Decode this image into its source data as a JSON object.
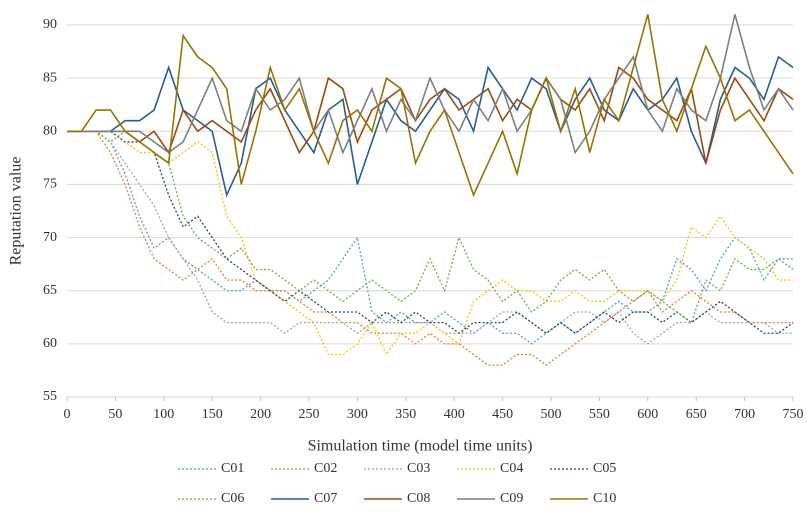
{
  "chart_data": {
    "type": "line",
    "xlabel": "Simulation time (model time units)",
    "ylabel": "Reputation value",
    "x": [
      0,
      15,
      30,
      45,
      60,
      75,
      90,
      105,
      120,
      135,
      150,
      165,
      180,
      195,
      210,
      225,
      240,
      255,
      270,
      285,
      300,
      315,
      330,
      345,
      360,
      375,
      390,
      405,
      420,
      435,
      450,
      465,
      480,
      495,
      510,
      525,
      540,
      555,
      570,
      585,
      600,
      615,
      630,
      645,
      660,
      675,
      690,
      705,
      720,
      735,
      750
    ],
    "xlim": [
      0,
      750
    ],
    "xticks": [
      0,
      50,
      100,
      150,
      200,
      250,
      300,
      350,
      400,
      450,
      500,
      550,
      600,
      650,
      700,
      750
    ],
    "ylim": [
      55,
      90
    ],
    "yticks": [
      55,
      60,
      65,
      70,
      75,
      80,
      85,
      90
    ],
    "grid": true,
    "series": [
      {
        "name": "C01",
        "color": "#5b9bd5",
        "style": "dotted",
        "values": [
          80,
          80,
          80,
          79,
          76,
          72,
          69,
          70,
          68,
          67,
          66,
          65,
          65,
          66,
          65,
          65,
          64,
          65,
          66,
          68,
          70,
          63,
          62,
          63,
          62,
          62,
          63,
          62,
          61,
          62,
          61,
          61,
          60,
          61,
          62,
          61,
          62,
          63,
          64,
          63,
          63,
          64,
          68,
          67,
          65,
          68,
          70,
          69,
          66,
          68,
          68
        ]
      },
      {
        "name": "C02",
        "color": "#ed7d31",
        "style": "dotted",
        "values": [
          80,
          80,
          80,
          78,
          75,
          71,
          68,
          67,
          66,
          67,
          68,
          66,
          66,
          65,
          65,
          65,
          64,
          63,
          63,
          62,
          62,
          61,
          61,
          61,
          60,
          61,
          60,
          60,
          59,
          58,
          58,
          59,
          59,
          58,
          59,
          60,
          61,
          62,
          63,
          64,
          65,
          63,
          64,
          65,
          64,
          63,
          63,
          62,
          62,
          62,
          62
        ]
      },
      {
        "name": "C03",
        "color": "#a5a5a5",
        "style": "dotted",
        "values": [
          80,
          80,
          80,
          79,
          77,
          75,
          73,
          70,
          68,
          66,
          63,
          62,
          62,
          62,
          62,
          61,
          62,
          62,
          62,
          62,
          61,
          62,
          62,
          62,
          62,
          62,
          61,
          61,
          61,
          62,
          63,
          63,
          62,
          61,
          62,
          63,
          63,
          62,
          63,
          61,
          60,
          61,
          62,
          62,
          63,
          62,
          62,
          62,
          62,
          61,
          61
        ]
      },
      {
        "name": "C04",
        "color": "#ffc000",
        "style": "dotted",
        "values": [
          80,
          80,
          80,
          80,
          79,
          78,
          78,
          77,
          78,
          79,
          78,
          72,
          70,
          66,
          65,
          64,
          63,
          62,
          59,
          59,
          60,
          62,
          59,
          61,
          61,
          62,
          61,
          60,
          64,
          65,
          66,
          65,
          65,
          64,
          64,
          65,
          64,
          64,
          65,
          65,
          65,
          64,
          66,
          71,
          70,
          72,
          70,
          69,
          68,
          66,
          66
        ]
      },
      {
        "name": "C05",
        "color": "#264478",
        "style": "dotted",
        "values": [
          80,
          80,
          80,
          80,
          79,
          79,
          78,
          74,
          71,
          72,
          70,
          68,
          67,
          66,
          65,
          64,
          65,
          64,
          63,
          63,
          63,
          62,
          63,
          62,
          63,
          62,
          62,
          61,
          62,
          62,
          62,
          63,
          62,
          61,
          62,
          61,
          62,
          63,
          62,
          63,
          63,
          62,
          63,
          62,
          63,
          64,
          63,
          62,
          61,
          61,
          62
        ]
      },
      {
        "name": "C06",
        "color": "#70ad47",
        "style": "dotted",
        "values": [
          80,
          80,
          80,
          79,
          80,
          79,
          78,
          77,
          72,
          70,
          69,
          68,
          69,
          67,
          67,
          66,
          65,
          66,
          65,
          64,
          65,
          66,
          65,
          64,
          65,
          68,
          65,
          70,
          67,
          66,
          64,
          65,
          63,
          64,
          66,
          67,
          66,
          67,
          65,
          64,
          65,
          64,
          63,
          62,
          66,
          65,
          68,
          67,
          67,
          68,
          67
        ]
      },
      {
        "name": "C07",
        "color": "#255e91",
        "style": "solid",
        "values": [
          80,
          80,
          80,
          80,
          81,
          81,
          82,
          86,
          82,
          81,
          80,
          74,
          77,
          84,
          85,
          82,
          80,
          78,
          82,
          83,
          75,
          79,
          83,
          81,
          80,
          82,
          84,
          83,
          80,
          86,
          84,
          82,
          85,
          84,
          80,
          83,
          85,
          82,
          81,
          84,
          82,
          83,
          85,
          80,
          77,
          83,
          86,
          85,
          83,
          87,
          86
        ]
      },
      {
        "name": "C08",
        "color": "#9e480e",
        "style": "solid",
        "values": [
          80,
          80,
          80,
          80,
          80,
          79,
          80,
          78,
          82,
          80,
          81,
          80,
          79,
          82,
          84,
          81,
          78,
          80,
          85,
          84,
          79,
          82,
          83,
          84,
          81,
          83,
          84,
          82,
          83,
          84,
          81,
          83,
          82,
          85,
          83,
          82,
          84,
          81,
          86,
          85,
          83,
          82,
          81,
          84,
          77,
          82,
          85,
          83,
          81,
          84,
          83
        ]
      },
      {
        "name": "C09",
        "color": "#7f7f7f",
        "style": "solid",
        "values": [
          80,
          80,
          80,
          80,
          80,
          80,
          79,
          78,
          79,
          82,
          85,
          81,
          80,
          84,
          82,
          83,
          85,
          80,
          82,
          78,
          81,
          84,
          80,
          83,
          81,
          85,
          82,
          80,
          83,
          81,
          84,
          80,
          82,
          85,
          83,
          78,
          80,
          83,
          85,
          87,
          82,
          80,
          84,
          82,
          81,
          85,
          91,
          86,
          82,
          84,
          82
        ]
      },
      {
        "name": "C10",
        "color": "#997300",
        "style": "solid",
        "values": [
          80,
          80,
          82,
          82,
          80,
          79,
          78,
          77,
          89,
          87,
          86,
          84,
          75,
          80,
          86,
          82,
          84,
          80,
          77,
          81,
          82,
          80,
          85,
          84,
          77,
          80,
          82,
          78,
          74,
          77,
          80,
          76,
          82,
          85,
          80,
          84,
          78,
          83,
          81,
          86,
          91,
          83,
          80,
          84,
          88,
          85,
          81,
          82,
          80,
          78,
          76
        ]
      }
    ]
  }
}
